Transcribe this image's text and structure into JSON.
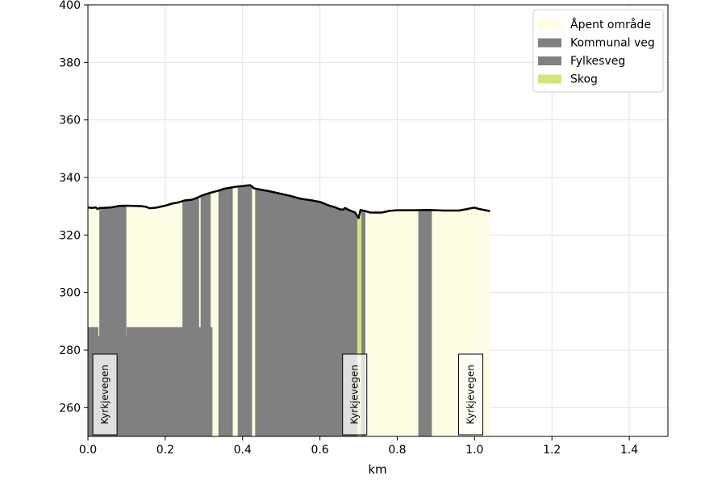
{
  "chart_data": {
    "type": "area",
    "xlabel": "km",
    "ylabel": "",
    "xlim": [
      0,
      1.5
    ],
    "ylim": [
      250,
      400
    ],
    "x_ticks": [
      0.0,
      0.2,
      0.4,
      0.6,
      0.8,
      1.0,
      1.2,
      1.4
    ],
    "x_tick_labels": [
      "0.0",
      "0.2",
      "0.4",
      "0.6",
      "0.8",
      "1.0",
      "1.2",
      "1.4"
    ],
    "y_ticks": [
      260,
      280,
      300,
      320,
      340,
      360,
      380,
      400
    ],
    "y_tick_labels": [
      "260",
      "280",
      "300",
      "320",
      "340",
      "360",
      "380",
      "400"
    ],
    "grid": true,
    "legend_position": "top-right",
    "colors": {
      "apent": "#fdfde4",
      "kommunal": "#808080",
      "fylkes": "#808080",
      "skog": "#d4e47a",
      "profile": "#000000"
    },
    "legend": [
      {
        "label": "Åpent område",
        "color": "#fdfde4"
      },
      {
        "label": "Kommunal veg",
        "color": "#808080"
      },
      {
        "label": "Fylkesveg",
        "color": "#808080"
      },
      {
        "label": "Skog",
        "color": "#d4e47a"
      }
    ],
    "elevation_profile": {
      "km": [
        0.0,
        0.01,
        0.02,
        0.025,
        0.03,
        0.04,
        0.06,
        0.08,
        0.1,
        0.12,
        0.14,
        0.15,
        0.16,
        0.17,
        0.18,
        0.19,
        0.2,
        0.22,
        0.23,
        0.25,
        0.27,
        0.28,
        0.3,
        0.32,
        0.34,
        0.35,
        0.37,
        0.38,
        0.39,
        0.4,
        0.41,
        0.42,
        0.43,
        0.45,
        0.47,
        0.5,
        0.52,
        0.55,
        0.58,
        0.6,
        0.61,
        0.62,
        0.63,
        0.64,
        0.65,
        0.66,
        0.665,
        0.67,
        0.68,
        0.69,
        0.695,
        0.7,
        0.705,
        0.72,
        0.73,
        0.76,
        0.78,
        0.8,
        0.84,
        0.88,
        0.92,
        0.96,
        0.98,
        0.99,
        1.0,
        1.01,
        1.04
      ],
      "elevation": [
        329.6,
        329.4,
        329.6,
        329.0,
        329.4,
        329.4,
        329.6,
        330.1,
        330.2,
        330.1,
        330.0,
        329.8,
        329.3,
        329.4,
        329.6,
        329.9,
        330.2,
        331.0,
        331.2,
        332.0,
        332.3,
        332.8,
        334.0,
        334.8,
        335.5,
        336.0,
        336.5,
        336.7,
        336.9,
        337.0,
        337.2,
        337.3,
        336.2,
        335.7,
        335.2,
        334.3,
        333.7,
        332.6,
        332.0,
        331.5,
        331.0,
        330.4,
        330.0,
        329.6,
        329.0,
        328.8,
        329.4,
        329.0,
        328.4,
        327.9,
        327.0,
        325.9,
        328.7,
        328.2,
        327.8,
        327.8,
        328.4,
        328.6,
        328.6,
        328.7,
        328.5,
        328.5,
        329.0,
        329.3,
        329.5,
        329.1,
        328.3
      ]
    },
    "surface_segments": [
      {
        "type": "apent",
        "x0": 0.0,
        "x1": 0.03
      },
      {
        "type": "kommunal",
        "x0": 0.03,
        "x1": 0.1
      },
      {
        "type": "apent",
        "x0": 0.1,
        "x1": 0.245
      },
      {
        "type": "kommunal",
        "x0": 0.245,
        "x1": 0.288
      },
      {
        "type": "apent",
        "x0": 0.288,
        "x1": 0.292
      },
      {
        "type": "kommunal",
        "x0": 0.292,
        "x1": 0.318
      },
      {
        "type": "apent",
        "x0": 0.318,
        "x1": 0.338
      },
      {
        "type": "kommunal",
        "x0": 0.338,
        "x1": 0.375
      },
      {
        "type": "apent",
        "x0": 0.375,
        "x1": 0.388
      },
      {
        "type": "kommunal",
        "x0": 0.388,
        "x1": 0.425
      },
      {
        "type": "apent",
        "x0": 0.425,
        "x1": 0.433
      },
      {
        "type": "kommunal",
        "x0": 0.433,
        "x1": 0.697
      },
      {
        "type": "skog",
        "x0": 0.697,
        "x1": 0.708
      },
      {
        "type": "kommunal",
        "x0": 0.708,
        "x1": 0.718
      },
      {
        "type": "apent",
        "x0": 0.718,
        "x1": 0.855
      },
      {
        "type": "kommunal",
        "x0": 0.855,
        "x1": 0.89
      },
      {
        "type": "apent",
        "x0": 0.89,
        "x1": 1.04
      }
    ],
    "fylkesveg_segments": [
      {
        "x0": 0.0,
        "x1": 0.027,
        "top": 288
      },
      {
        "x0": 0.027,
        "x1": 0.1,
        "top": 285
      },
      {
        "x0": 0.1,
        "x1": 0.245,
        "top": 288
      },
      {
        "x0": 0.245,
        "x1": 0.322,
        "top": 288
      }
    ],
    "road_labels": [
      {
        "text": "Kyrkjevegen",
        "x": 0.044
      },
      {
        "text": "Kyrkjevegen",
        "x": 0.69
      },
      {
        "text": "Kyrkjevegen",
        "x": 0.99
      }
    ]
  }
}
